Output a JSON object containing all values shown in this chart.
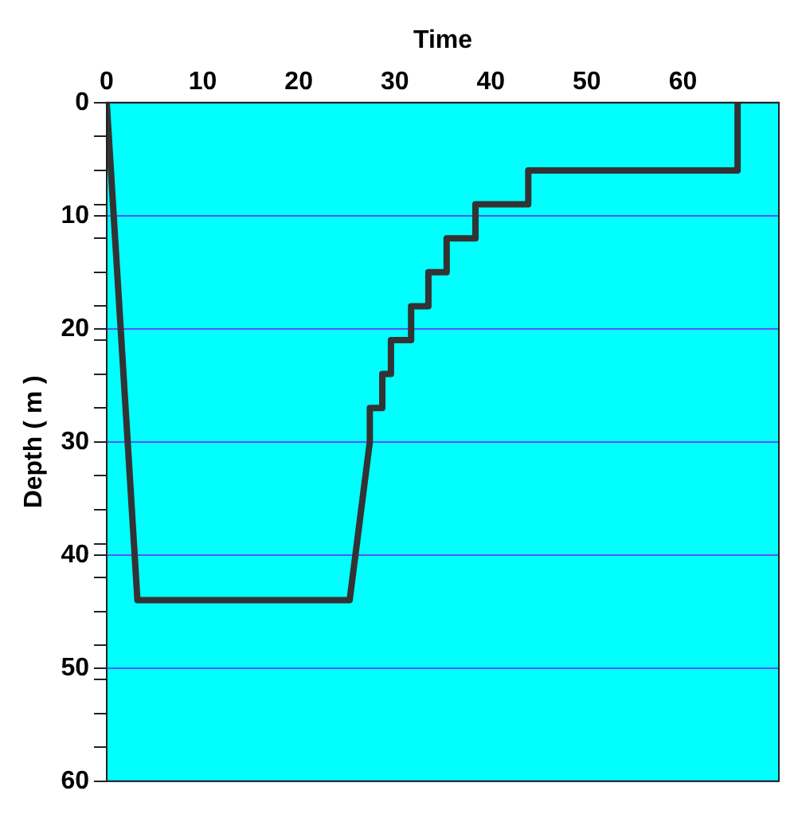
{
  "chart_data": {
    "type": "line",
    "xlabel": "Time",
    "ylabel": "Depth ( m )",
    "x": [
      0,
      3.2,
      25.3,
      27.4,
      27.4,
      28.7,
      28.7,
      29.6,
      29.6,
      31.7,
      31.7,
      33.5,
      33.5,
      35.4,
      35.4,
      38.4,
      38.4,
      43.9,
      43.9,
      65.7,
      65.7
    ],
    "series": [
      {
        "color": "#333333",
        "values": [
          0,
          44,
          44,
          30,
          27,
          27,
          24,
          24,
          21,
          21,
          18,
          18,
          15,
          15,
          12,
          12,
          9,
          9,
          6,
          6,
          0
        ]
      }
    ],
    "xlim": [
      0,
      70
    ],
    "xticks": [
      0,
      10,
      20,
      30,
      40,
      50,
      60
    ],
    "ylim": [
      60,
      0
    ],
    "yticks": [
      0,
      {
        "value": 3,
        "label": null
      },
      {
        "value": 6,
        "label": null
      },
      {
        "value": 9,
        "label": null
      },
      10,
      {
        "value": 12,
        "label": null
      },
      {
        "value": 15,
        "label": null
      },
      {
        "value": 18,
        "label": null
      },
      20,
      {
        "value": 21,
        "label": null
      },
      {
        "value": 24,
        "label": null
      },
      {
        "value": 27,
        "label": null
      },
      30,
      {
        "value": 33,
        "label": null
      },
      {
        "value": 36,
        "label": null
      },
      {
        "value": 39,
        "label": null
      },
      40,
      {
        "value": 42,
        "label": null
      },
      {
        "value": 45,
        "label": null
      },
      {
        "value": 48,
        "label": null
      },
      50,
      {
        "value": 51,
        "label": null
      },
      {
        "value": 54,
        "label": null
      },
      {
        "value": 57,
        "label": null
      },
      60
    ],
    "grid": "y",
    "marker": "none",
    "line_style": "solid"
  }
}
